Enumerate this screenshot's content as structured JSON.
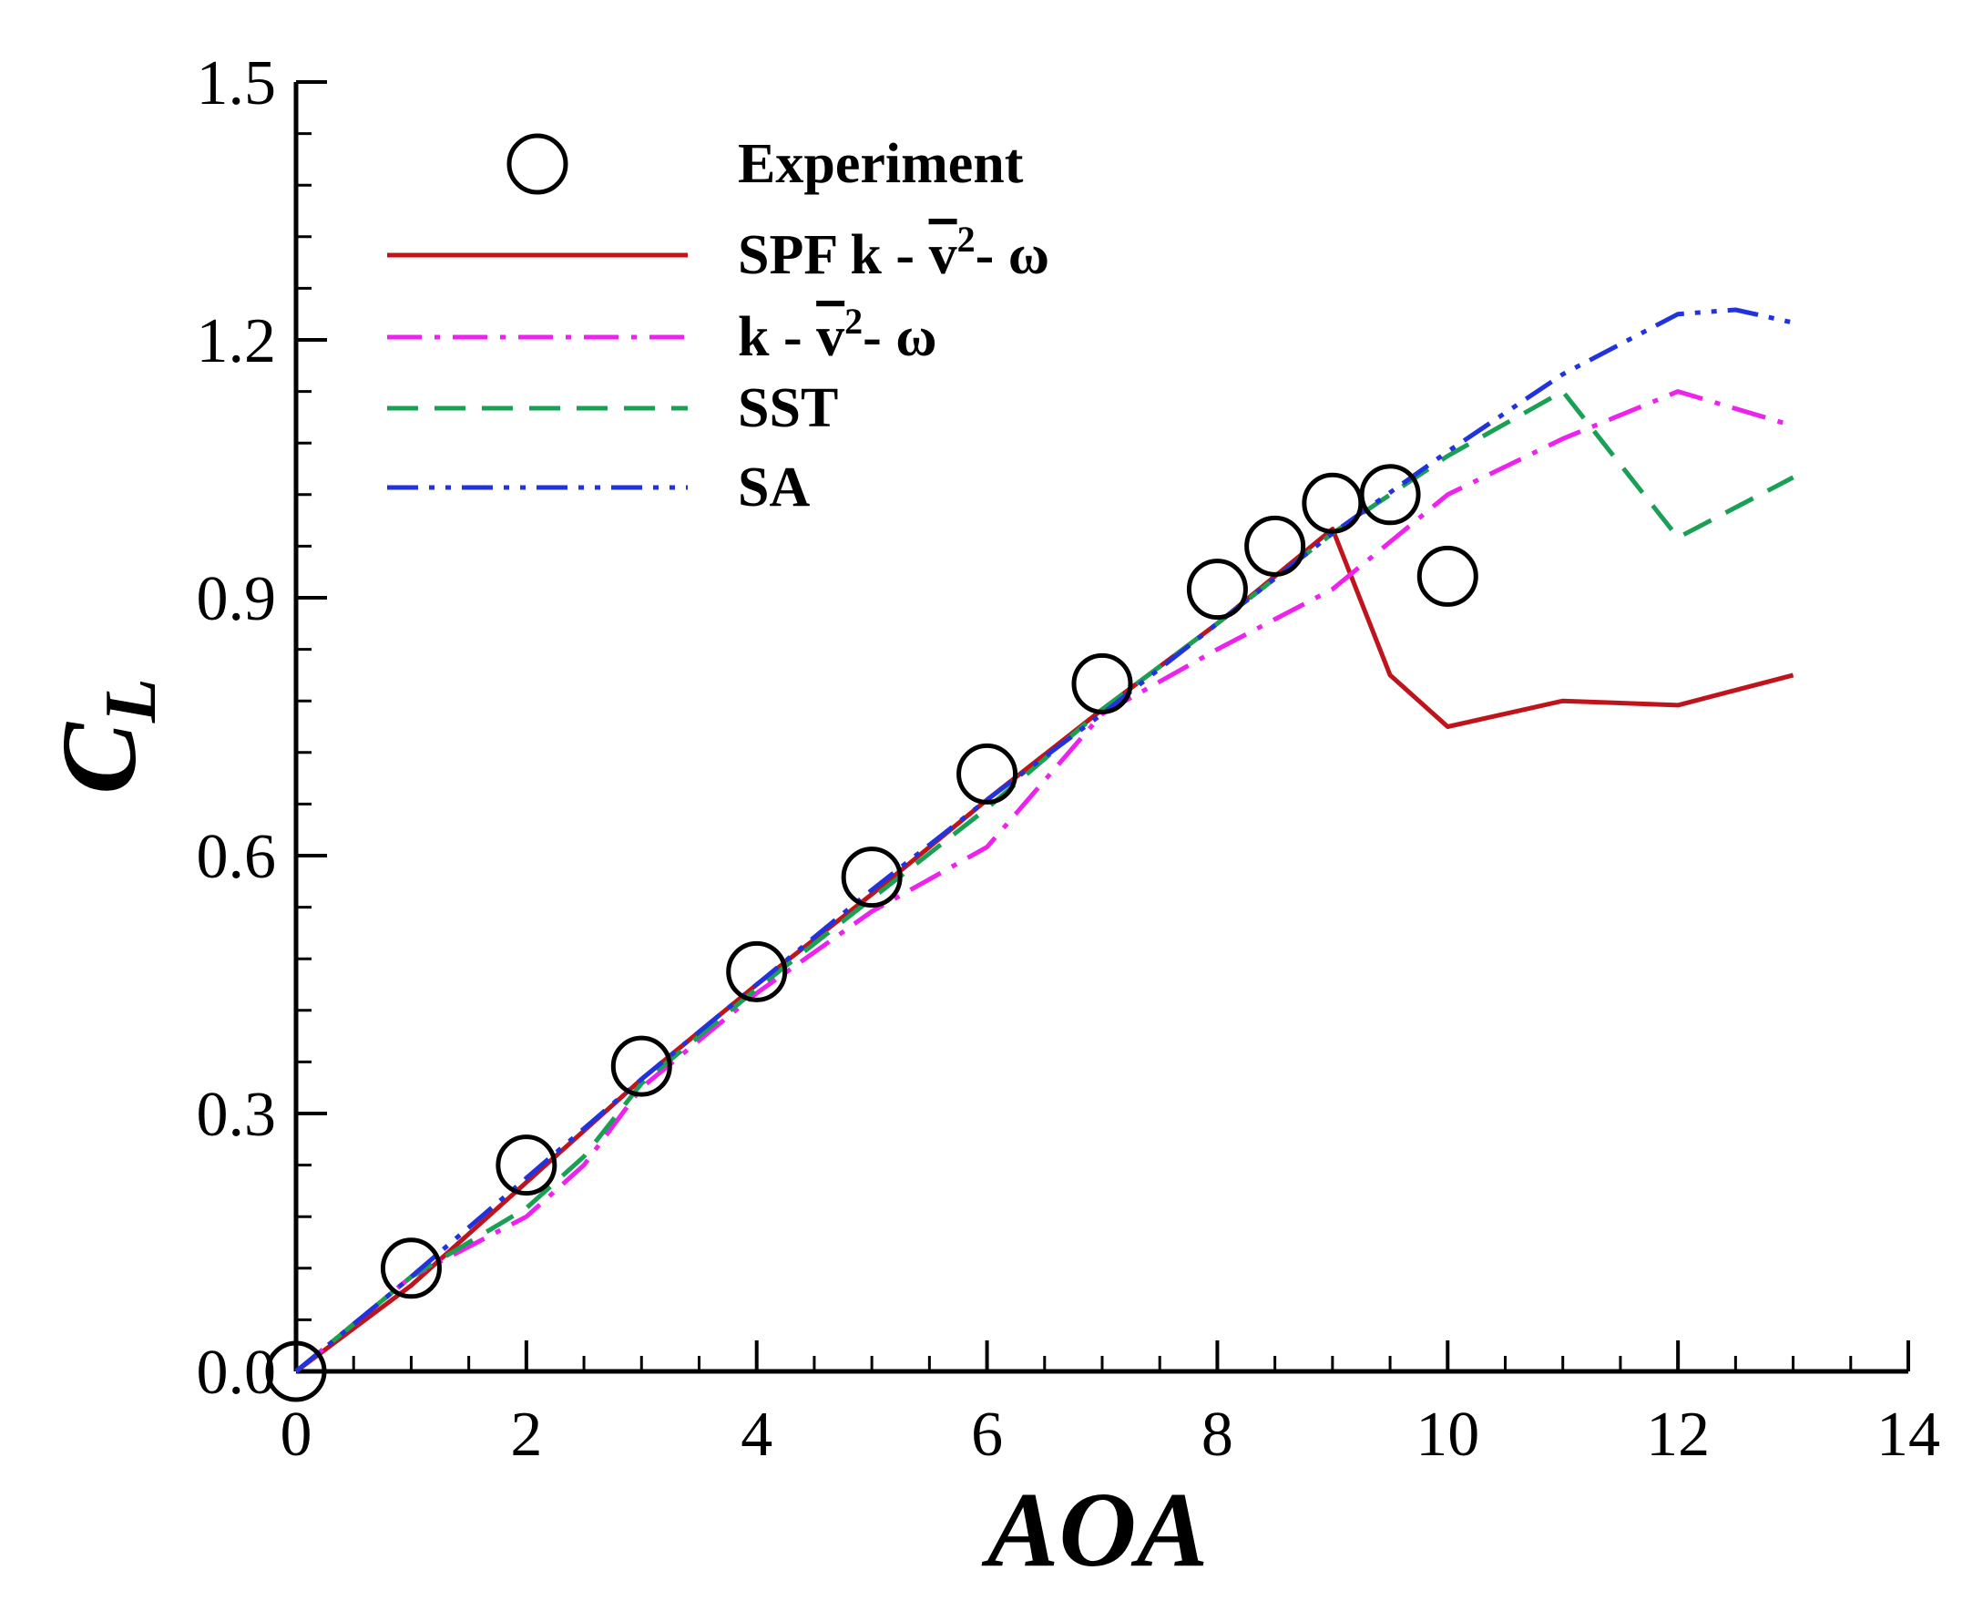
{
  "chart_data": {
    "type": "line",
    "title": "",
    "xlabel": "AOA",
    "ylabel": {
      "main": "C",
      "sub": "L"
    },
    "xlim": [
      0,
      14
    ],
    "ylim": [
      0,
      1.5
    ],
    "xticks": [
      "0",
      "2",
      "4",
      "6",
      "8",
      "10",
      "12",
      "14"
    ],
    "yticks": [
      "0.0",
      "0.3",
      "0.6",
      "0.9",
      "1.2",
      "1.5"
    ],
    "xtick_values": [
      0,
      2,
      4,
      6,
      8,
      10,
      12,
      14
    ],
    "ytick_values": [
      0,
      0.3,
      0.6,
      0.9,
      1.2,
      1.5
    ],
    "grid": false,
    "legend_position": "top-left",
    "series": [
      {
        "name": "Experiment",
        "style": "circle-marker",
        "color": "#000000",
        "x": [
          0,
          1,
          2,
          3,
          4,
          5,
          6,
          7,
          8,
          8.5,
          9,
          9.5,
          10
        ],
        "y": [
          0.0,
          0.12,
          0.24,
          0.355,
          0.465,
          0.575,
          0.695,
          0.8,
          0.91,
          0.96,
          1.01,
          1.02,
          0.925
        ]
      },
      {
        "name": "SPF k - v2 - ω",
        "legend": {
          "prefix": "SPF k - ",
          "var": "v",
          "exp": "2",
          "suffix": "- ω"
        },
        "style": "solid",
        "color": "#c0141c",
        "x": [
          0,
          1,
          2,
          3,
          4,
          5,
          6,
          7,
          8,
          9,
          9.5,
          10,
          11,
          12,
          13
        ],
        "y": [
          0.0,
          0.1,
          0.22,
          0.34,
          0.45,
          0.555,
          0.665,
          0.77,
          0.87,
          0.98,
          0.81,
          0.75,
          0.78,
          0.775,
          0.81
        ]
      },
      {
        "name": "k - v2 - ω",
        "legend": {
          "prefix": "k - ",
          "var": "v",
          "exp": "2",
          "suffix": "- ω"
        },
        "style": "dash-dot",
        "color": "#ee22ee",
        "x": [
          0,
          1,
          2,
          2.5,
          3,
          4,
          5,
          6,
          7,
          8,
          9,
          10,
          11,
          12,
          13
        ],
        "y": [
          0.0,
          0.11,
          0.18,
          0.24,
          0.33,
          0.44,
          0.535,
          0.61,
          0.765,
          0.84,
          0.91,
          1.02,
          1.085,
          1.14,
          1.1
        ]
      },
      {
        "name": "SST",
        "style": "dashed",
        "color": "#1aa055",
        "x": [
          0,
          1,
          2,
          2.5,
          3,
          4,
          5,
          6,
          7,
          8,
          9,
          10,
          11,
          12,
          13
        ],
        "y": [
          0.0,
          0.11,
          0.19,
          0.25,
          0.335,
          0.445,
          0.55,
          0.655,
          0.77,
          0.87,
          0.975,
          1.065,
          1.14,
          0.97,
          1.04
        ]
      },
      {
        "name": "SA",
        "style": "dash-dot-dot",
        "color": "#2233dd",
        "x": [
          0,
          1,
          2,
          3,
          4,
          5,
          6,
          7,
          8,
          9,
          10,
          11,
          12,
          12.5,
          13
        ],
        "y": [
          0.0,
          0.11,
          0.225,
          0.34,
          0.45,
          0.56,
          0.665,
          0.765,
          0.87,
          0.975,
          1.07,
          1.16,
          1.23,
          1.235,
          1.22
        ]
      }
    ]
  }
}
